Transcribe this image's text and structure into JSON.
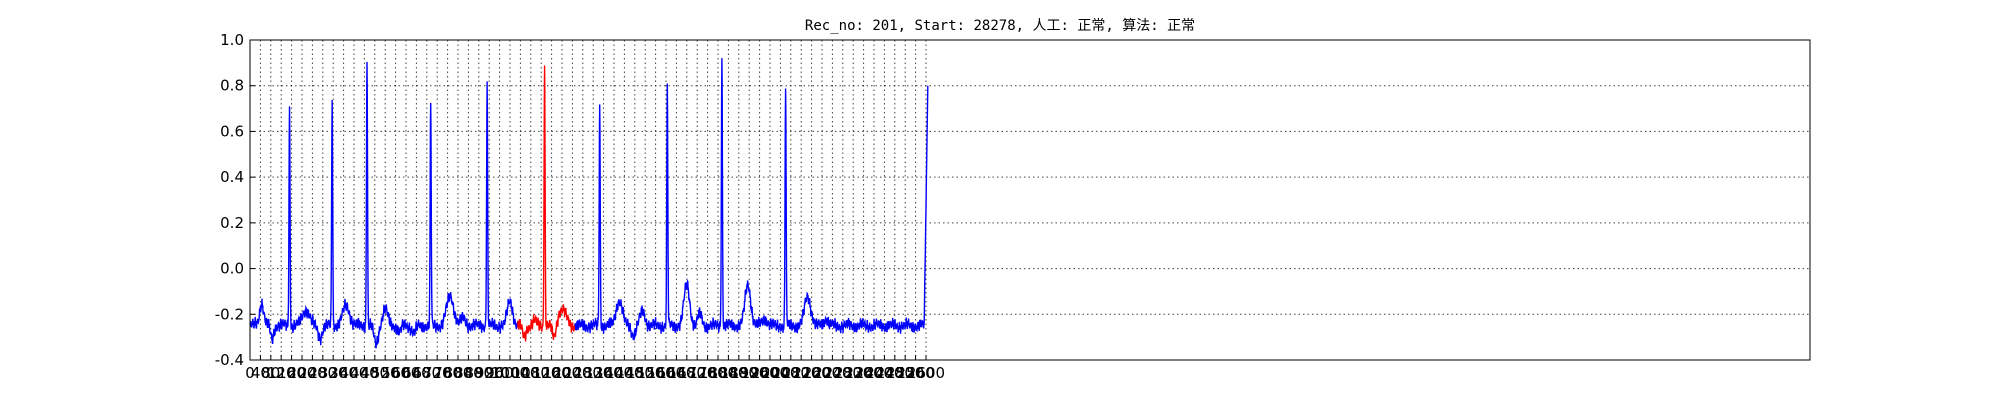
{
  "chart_data": {
    "type": "line",
    "title": "Rec_no: 201, Start: 28278, 人工: 正常, 算法: 正常",
    "xlabel": "",
    "ylabel": "",
    "xlim": [
      0,
      6000
    ],
    "ylim": [
      -0.4,
      1.0
    ],
    "x_ticks": [
      0,
      40,
      80,
      120,
      160,
      200,
      240,
      280,
      320,
      360,
      400,
      440,
      480,
      520,
      560,
      600,
      640,
      680,
      720,
      760,
      800,
      840,
      880,
      920,
      960,
      1000,
      1040,
      1080,
      1120,
      1160,
      1200,
      1240,
      1280,
      1320,
      1360,
      1400,
      1440,
      1480,
      1520,
      1560,
      1600,
      1640,
      1680,
      1720,
      1760,
      1800,
      1840,
      1880,
      1920,
      1960,
      2000,
      2040,
      2080,
      2120,
      2160,
      2200,
      2240,
      2280,
      2320,
      2360,
      2400,
      2440,
      2480,
      2520,
      2560,
      2600
    ],
    "y_ticks": [
      -0.4,
      -0.2,
      0.0,
      0.2,
      0.4,
      0.6,
      0.8,
      1.0
    ],
    "series_colors": {
      "normal": "#0000ff",
      "highlight": "#ff0000"
    },
    "baseline": -0.25,
    "signal_end_x": 2607,
    "highlight_range": [
      1030,
      1250
    ],
    "r_peaks": [
      {
        "x": 152,
        "y": 0.71
      },
      {
        "x": 316,
        "y": 0.74
      },
      {
        "x": 450,
        "y": 0.92
      },
      {
        "x": 695,
        "y": 0.73
      },
      {
        "x": 912,
        "y": 0.8
      },
      {
        "x": 1133,
        "y": 0.89
      },
      {
        "x": 1345,
        "y": 0.72
      },
      {
        "x": 1605,
        "y": 0.79
      },
      {
        "x": 1815,
        "y": 0.93
      },
      {
        "x": 2060,
        "y": 0.8
      }
    ],
    "waves": [
      {
        "x": 45,
        "y": -0.15,
        "w": 8
      },
      {
        "x": 85,
        "y": -0.31,
        "w": 6
      },
      {
        "x": 215,
        "y": -0.18,
        "w": 14
      },
      {
        "x": 270,
        "y": -0.3,
        "w": 8
      },
      {
        "x": 370,
        "y": -0.16,
        "w": 13
      },
      {
        "x": 520,
        "y": -0.18,
        "w": 10
      },
      {
        "x": 485,
        "y": -0.33,
        "w": 8
      },
      {
        "x": 575,
        "y": -0.28,
        "w": 7
      },
      {
        "x": 630,
        "y": -0.28,
        "w": 8
      },
      {
        "x": 770,
        "y": -0.12,
        "w": 14
      },
      {
        "x": 820,
        "y": -0.22,
        "w": 10
      },
      {
        "x": 1000,
        "y": -0.14,
        "w": 10
      },
      {
        "x": 1055,
        "y": -0.3,
        "w": 7
      },
      {
        "x": 1095,
        "y": -0.23,
        "w": 8
      },
      {
        "x": 1170,
        "y": -0.31,
        "w": 7
      },
      {
        "x": 1200,
        "y": -0.18,
        "w": 16
      },
      {
        "x": 1420,
        "y": -0.14,
        "w": 12
      },
      {
        "x": 1475,
        "y": -0.29,
        "w": 8
      },
      {
        "x": 1510,
        "y": -0.19,
        "w": 10
      },
      {
        "x": 1680,
        "y": -0.07,
        "w": 11
      },
      {
        "x": 1730,
        "y": -0.2,
        "w": 8
      },
      {
        "x": 1915,
        "y": -0.07,
        "w": 11
      },
      {
        "x": 1980,
        "y": -0.22,
        "w": 10
      },
      {
        "x": 2145,
        "y": -0.12,
        "w": 12
      },
      {
        "x": 2215,
        "y": -0.22,
        "w": 9
      },
      {
        "x": 2380,
        "y": -0.25,
        "w": 6
      }
    ],
    "end_rise": {
      "x": 2607,
      "y": 0.8
    }
  }
}
